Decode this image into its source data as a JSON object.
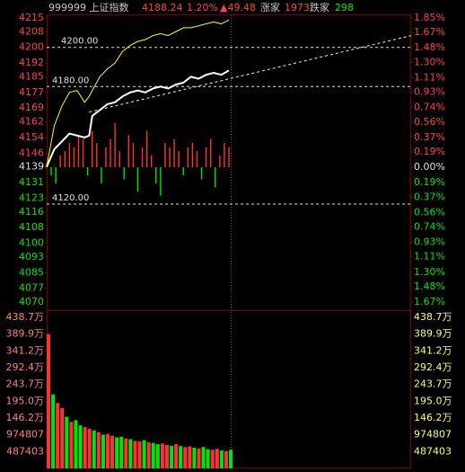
{
  "header": {
    "code_name": "999999 上证指数",
    "price": "4188.24",
    "change_pct": "1.20%",
    "change": "▲49.48",
    "up_label": "涨家",
    "up_count": "1973",
    "down_label": "跌家",
    "down_count": "298"
  },
  "chart_data": [
    {
      "type": "line",
      "xlim": [
        0,
        240
      ],
      "ylim": [
        4070,
        4215
      ],
      "yticks": [
        4215,
        4208,
        4200,
        4192,
        4185,
        4177,
        4169,
        4162,
        4154,
        4146,
        4139,
        4131,
        4123,
        4116,
        4108,
        4100,
        4093,
        4085,
        4077,
        4070
      ],
      "y2lim": [
        -1.67,
        1.85
      ],
      "y2ticks": [
        {
          "value": 1.85,
          "label": "1.85%"
        },
        {
          "value": 1.67,
          "label": "1.67%"
        },
        {
          "value": 1.48,
          "label": "1.48%"
        },
        {
          "value": 1.3,
          "label": "1.30%"
        },
        {
          "value": 1.11,
          "label": "1.11%"
        },
        {
          "value": 0.93,
          "label": "0.93%"
        },
        {
          "value": 0.74,
          "label": "0.74%"
        },
        {
          "value": 0.56,
          "label": "0.56%"
        },
        {
          "value": 0.37,
          "label": "0.37%"
        },
        {
          "value": 0.19,
          "label": "0.19%"
        },
        {
          "value": 0,
          "label": "0.00%"
        },
        {
          "value": -0.19,
          "label": "0.19%"
        },
        {
          "value": -0.37,
          "label": "0.37%"
        },
        {
          "value": -0.56,
          "label": "0.56%"
        },
        {
          "value": -0.74,
          "label": "0.74%"
        },
        {
          "value": -0.93,
          "label": "0.93%"
        },
        {
          "value": -1.11,
          "label": "1.11%"
        },
        {
          "value": -1.3,
          "label": "1.30%"
        },
        {
          "value": -1.48,
          "label": "1.48%"
        },
        {
          "value": -1.67,
          "label": "1.67%"
        }
      ],
      "x": [
        0,
        5,
        10,
        15,
        20,
        25,
        28,
        30,
        35,
        40,
        45,
        50,
        55,
        60,
        65,
        70,
        75,
        80,
        85,
        90,
        95,
        100,
        105,
        110,
        115,
        120
      ],
      "series": [
        {
          "color": "#ffffff",
          "values": [
            4139,
            4148,
            4152,
            4156,
            4155,
            4154,
            4155,
            4165,
            4168,
            4171,
            4172,
            4175,
            4177,
            4178,
            4177,
            4179,
            4180,
            4179,
            4181,
            4182,
            4185,
            4184,
            4186,
            4187,
            4186,
            4188.24
          ]
        },
        {
          "color": "#ffff00",
          "values": [
            4139,
            4160,
            4170,
            4177,
            4178,
            4172,
            4175,
            4178,
            4185,
            4189,
            4192,
            4198,
            4201,
            4203,
            4204,
            4206,
            4207,
            4206,
            4208,
            4210,
            4210,
            4211,
            4212,
            4213,
            4212,
            4214
          ]
        }
      ],
      "bars": {
        "axis": "y2",
        "x": [
          0,
          3,
          6,
          9,
          12,
          15,
          18,
          21,
          24,
          27,
          30,
          33,
          36,
          39,
          42,
          45,
          48,
          51,
          54,
          57,
          60,
          63,
          66,
          69,
          72,
          75,
          78,
          81,
          84,
          87,
          90,
          93,
          96,
          99,
          102,
          105,
          108,
          111,
          114,
          117,
          120
        ],
        "values": [
          0.05,
          -0.1,
          -0.2,
          0.15,
          0.2,
          0.3,
          0.25,
          0.4,
          0.35,
          -0.1,
          0.45,
          0.3,
          -0.2,
          0.25,
          0.35,
          0.55,
          0.2,
          -0.15,
          0.4,
          0.3,
          -0.3,
          0.25,
          0.45,
          0.15,
          -0.2,
          -0.35,
          0.3,
          0.25,
          0.35,
          0.2,
          -0.1,
          0.25,
          0.3,
          0.2,
          -0.15,
          0.25,
          0.35,
          -0.25,
          0.15,
          0.3,
          0.25
        ]
      },
      "levels": [
        {
          "value": 4200,
          "label": "4200.00"
        },
        {
          "value": 4180,
          "label": "4180.00"
        },
        {
          "value": 4120,
          "label": "4120.00"
        }
      ],
      "trend_line": {
        "x": [
          28,
          240
        ],
        "values": [
          4167,
          4206
        ]
      }
    },
    {
      "type": "bar",
      "xlim": [
        0,
        240
      ],
      "ylim": [
        0,
        4387000
      ],
      "yticks": [
        {
          "value": 4387000,
          "label": "438.7万"
        },
        {
          "value": 3899000,
          "label": "389.9万"
        },
        {
          "value": 3412000,
          "label": "341.2万"
        },
        {
          "value": 2924000,
          "label": "292.4万"
        },
        {
          "value": 2437000,
          "label": "243.7万"
        },
        {
          "value": 1950000,
          "label": "195.0万"
        },
        {
          "value": 1462000,
          "label": "146.2万"
        },
        974807,
        487403
      ],
      "x": [
        0,
        3,
        6,
        9,
        12,
        15,
        18,
        21,
        24,
        27,
        30,
        33,
        36,
        39,
        42,
        45,
        48,
        51,
        54,
        57,
        60,
        63,
        66,
        69,
        72,
        75,
        78,
        81,
        84,
        87,
        90,
        93,
        96,
        99,
        102,
        105,
        108,
        111,
        114,
        117,
        120
      ],
      "values": [
        3900000,
        2150000,
        1900000,
        1750000,
        1500000,
        1350000,
        1400000,
        1250000,
        1200000,
        1150000,
        1100000,
        1050000,
        980000,
        1000000,
        950000,
        900000,
        920000,
        870000,
        850000,
        800000,
        780000,
        820000,
        760000,
        740000,
        700000,
        720000,
        680000,
        660000,
        700000,
        650000,
        620000,
        640000,
        600000,
        580000,
        620000,
        560000,
        540000,
        570000,
        520000,
        500000,
        540000
      ],
      "colors": [
        "#ff3232",
        "#00e600",
        "#ff3232",
        "#ff3232",
        "#00e600",
        "#ff3232",
        "#00e600",
        "#00e600",
        "#ff3232",
        "#ff3232",
        "#00e600",
        "#ff3232",
        "#00e600",
        "#ff3232",
        "#ff3232",
        "#00e600",
        "#00e600",
        "#ff3232",
        "#00e600",
        "#ff3232",
        "#ff3232",
        "#00e600",
        "#ff3232",
        "#00e600",
        "#00e600",
        "#ff3232",
        "#ff3232",
        "#00e600",
        "#ff3232",
        "#00e600",
        "#ff3232",
        "#ff3232",
        "#00e600",
        "#ff3232",
        "#00e600",
        "#00e600",
        "#ff3232",
        "#ff3232",
        "#00e600",
        "#ff3232",
        "#00e600"
      ]
    }
  ]
}
